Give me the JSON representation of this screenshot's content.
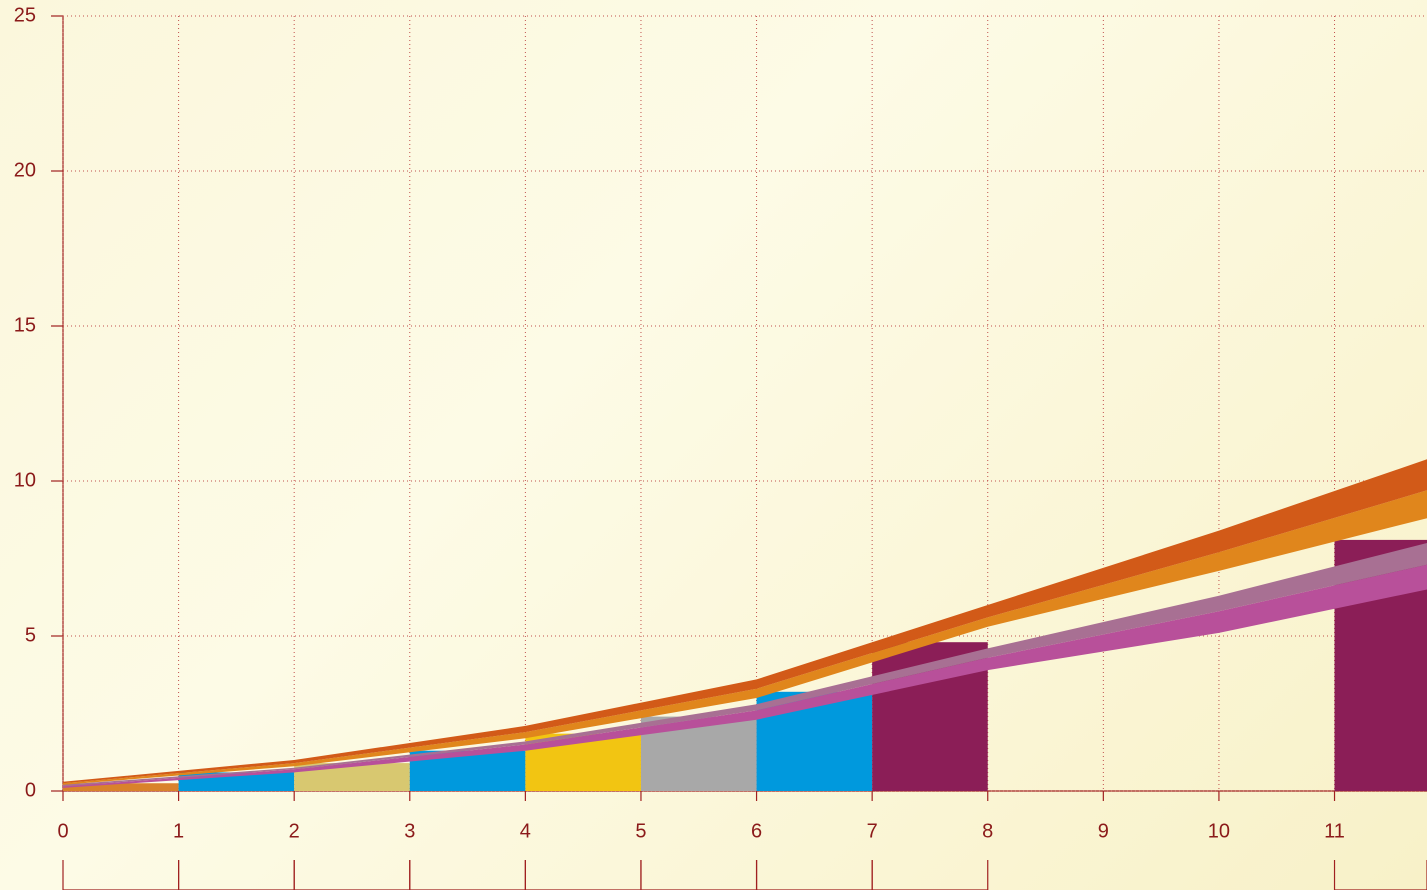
{
  "chart_data": {
    "type": "bar",
    "xlim": [
      0,
      11.8
    ],
    "ylim": [
      0,
      25
    ],
    "xticks": [
      0,
      1,
      2,
      3,
      4,
      5,
      6,
      7,
      8,
      9,
      10,
      11
    ],
    "yticks": [
      0,
      5,
      10,
      15,
      20,
      25
    ],
    "grid": true,
    "bars": [
      {
        "x": [
          0,
          1
        ],
        "value": 0.25,
        "color": "#d9822b"
      },
      {
        "x": [
          1,
          2
        ],
        "value": 0.6,
        "color": "#0099dd"
      },
      {
        "x": [
          2,
          3
        ],
        "value": 0.9,
        "color": "#d8c870"
      },
      {
        "x": [
          3,
          4
        ],
        "value": 1.3,
        "color": "#0099dd"
      },
      {
        "x": [
          4,
          5
        ],
        "value": 1.85,
        "color": "#f2c512"
      },
      {
        "x": [
          5,
          6
        ],
        "value": 2.4,
        "color": "#a8a8a8"
      },
      {
        "x": [
          6,
          7
        ],
        "value": 3.2,
        "color": "#0099dd"
      },
      {
        "x": [
          7,
          8
        ],
        "value": 4.8,
        "color": "#8b1e57"
      },
      {
        "x": [
          11,
          11.8
        ],
        "value": 8.1,
        "color": "#8b1e57"
      }
    ],
    "band_x": [
      0,
      2,
      4,
      6,
      8,
      10,
      11.8
    ],
    "bands": [
      {
        "color": "#b8509a",
        "low": [
          0.1,
          0.6,
          1.3,
          2.3,
          3.9,
          5.1,
          6.5
        ],
        "high": [
          0.15,
          0.7,
          1.5,
          2.6,
          4.3,
          5.8,
          7.3
        ]
      },
      {
        "color": "#a87093",
        "low": [
          0.15,
          0.7,
          1.5,
          2.6,
          4.3,
          5.8,
          7.3
        ],
        "high": [
          0.2,
          0.75,
          1.6,
          2.8,
          4.6,
          6.3,
          8.0
        ]
      },
      {
        "color": "#e0861c",
        "low": [
          0.2,
          0.8,
          1.7,
          3.0,
          5.3,
          7.1,
          8.8
        ],
        "high": [
          0.25,
          0.9,
          1.9,
          3.3,
          5.6,
          7.7,
          9.7
        ]
      },
      {
        "color": "#d25a18",
        "low": [
          0.25,
          0.9,
          1.9,
          3.3,
          5.6,
          7.7,
          9.7
        ],
        "high": [
          0.3,
          1.0,
          2.1,
          3.6,
          6.0,
          8.4,
          10.7
        ]
      }
    ]
  }
}
